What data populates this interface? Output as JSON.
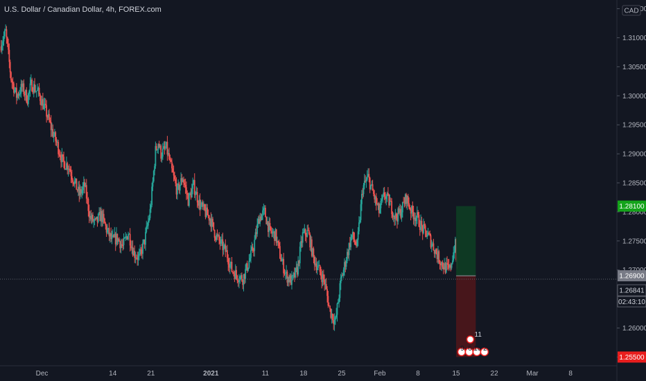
{
  "header": {
    "title": "U.S. Dollar / Canadian Dollar, 4h, FOREX.com"
  },
  "currency_badge": "CAD",
  "price_tags": {
    "target": "1.28100",
    "entry": "1.26900",
    "current": "1.26841",
    "countdown": "02:43:10",
    "stop": "1.25500"
  },
  "event_markers": {
    "top": "11",
    "row": [
      "9",
      "6",
      "10",
      "2"
    ]
  },
  "colors": {
    "background": "#131722",
    "up": "#26a69a",
    "down": "#ef5350",
    "target_zone": "#0e3b24",
    "stop_zone": "#4a161b",
    "target_tag": "#14a31a",
    "stop_tag": "#e91e1e",
    "entry_tag": "#787b86"
  },
  "chart_data": {
    "type": "candlestick",
    "title": "U.S. Dollar / Canadian Dollar, 4h, FOREX.com",
    "y_ticks": [
      "1.31500",
      "1.31000",
      "1.30500",
      "1.30000",
      "1.29500",
      "1.29000",
      "1.28500",
      "1.28000",
      "1.27500",
      "1.27000",
      "1.26500",
      "1.26000",
      "1.25500"
    ],
    "y_tick_values": [
      1.315,
      1.31,
      1.305,
      1.3,
      1.295,
      1.29,
      1.285,
      1.28,
      1.275,
      1.27,
      1.265,
      1.26,
      1.255
    ],
    "ylim": [
      1.2535,
      1.3165
    ],
    "x_ticks": [
      "Dec",
      "14",
      "21",
      "2021",
      "11",
      "18",
      "25",
      "Feb",
      "8",
      "15",
      "22",
      "Mar",
      "8"
    ],
    "x_tick_days": [
      0,
      13,
      20,
      31,
      41,
      48,
      55,
      62,
      69,
      76,
      83,
      90,
      97
    ],
    "xlim": [
      -7.7,
      105.5
    ],
    "x_bold_ticks": [
      "2021"
    ],
    "anchors": [
      [
        -7.5,
        1.3085
      ],
      [
        -6.5,
        1.311
      ],
      [
        -5.5,
        1.303
      ],
      [
        -4.5,
        1.3
      ],
      [
        -3.5,
        1.3015
      ],
      [
        -2.5,
        1.2995
      ],
      [
        -1.8,
        1.302
      ],
      [
        -0.5,
        1.3005
      ],
      [
        1.0,
        1.297
      ],
      [
        2.0,
        1.294
      ],
      [
        3.0,
        1.2915
      ],
      [
        4.0,
        1.2885
      ],
      [
        5.0,
        1.288
      ],
      [
        6.0,
        1.2855
      ],
      [
        7.0,
        1.283
      ],
      [
        8.0,
        1.2845
      ],
      [
        9.0,
        1.279
      ],
      [
        10.0,
        1.278
      ],
      [
        11.0,
        1.2795
      ],
      [
        12.0,
        1.277
      ],
      [
        13.0,
        1.275
      ],
      [
        14.0,
        1.2755
      ],
      [
        15.0,
        1.274
      ],
      [
        16.0,
        1.2765
      ],
      [
        17.0,
        1.273
      ],
      [
        18.0,
        1.272
      ],
      [
        19.0,
        1.275
      ],
      [
        20.0,
        1.28
      ],
      [
        20.5,
        1.285
      ],
      [
        21.0,
        1.2905
      ],
      [
        21.5,
        1.292
      ],
      [
        22.0,
        1.29
      ],
      [
        23.0,
        1.291
      ],
      [
        24.0,
        1.287
      ],
      [
        25.0,
        1.2835
      ],
      [
        26.0,
        1.286
      ],
      [
        27.0,
        1.282
      ],
      [
        28.0,
        1.2845
      ],
      [
        29.0,
        1.2815
      ],
      [
        30.0,
        1.28
      ],
      [
        31.0,
        1.279
      ],
      [
        32.0,
        1.276
      ],
      [
        33.0,
        1.2745
      ],
      [
        34.0,
        1.273
      ],
      [
        35.0,
        1.27
      ],
      [
        36.0,
        1.269
      ],
      [
        37.0,
        1.2685
      ],
      [
        38.0,
        1.271
      ],
      [
        39.0,
        1.274
      ],
      [
        40.0,
        1.279
      ],
      [
        41.0,
        1.28
      ],
      [
        42.0,
        1.2765
      ],
      [
        43.0,
        1.276
      ],
      [
        44.0,
        1.272
      ],
      [
        45.0,
        1.269
      ],
      [
        46.0,
        1.268
      ],
      [
        47.0,
        1.27
      ],
      [
        48.0,
        1.276
      ],
      [
        49.0,
        1.2765
      ],
      [
        50.0,
        1.272
      ],
      [
        51.0,
        1.27
      ],
      [
        52.0,
        1.268
      ],
      [
        53.0,
        1.263
      ],
      [
        54.0,
        1.261
      ],
      [
        55.0,
        1.268
      ],
      [
        56.0,
        1.272
      ],
      [
        57.0,
        1.276
      ],
      [
        58.0,
        1.274
      ],
      [
        59.0,
        1.284
      ],
      [
        60.0,
        1.286
      ],
      [
        61.0,
        1.283
      ],
      [
        62.0,
        1.28
      ],
      [
        63.0,
        1.283
      ],
      [
        64.0,
        1.2815
      ],
      [
        65.0,
        1.279
      ],
      [
        66.0,
        1.28
      ],
      [
        67.0,
        1.2825
      ],
      [
        68.0,
        1.28
      ],
      [
        69.0,
        1.279
      ],
      [
        70.0,
        1.277
      ],
      [
        71.0,
        1.276
      ],
      [
        72.0,
        1.274
      ],
      [
        73.0,
        1.272
      ],
      [
        74.0,
        1.2705
      ],
      [
        75.0,
        1.27
      ],
      [
        76.0,
        1.2745
      ],
      [
        76.3,
        1.27
      ]
    ]
  }
}
